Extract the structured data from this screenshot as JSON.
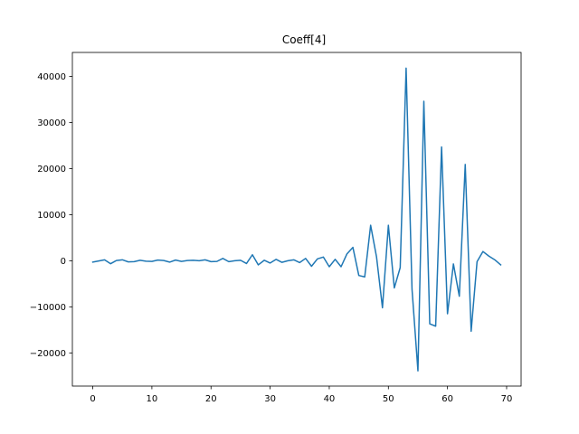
{
  "chart_data": {
    "type": "line",
    "title": "Coeff[4]",
    "xlabel": "",
    "ylabel": "",
    "xlim": [
      -3.45,
      72.45
    ],
    "ylim": [
      -27200,
      45200
    ],
    "grid": false,
    "legend": "none",
    "x_ticks": [
      0,
      10,
      20,
      30,
      40,
      50,
      60,
      70
    ],
    "y_ticks": [
      -20000,
      -10000,
      0,
      10000,
      20000,
      30000,
      40000
    ],
    "series": [
      {
        "color": "#1f77b4",
        "x": [
          0,
          1,
          2,
          3,
          4,
          5,
          6,
          7,
          8,
          9,
          10,
          11,
          12,
          13,
          14,
          15,
          16,
          17,
          18,
          19,
          20,
          21,
          22,
          23,
          24,
          25,
          26,
          27,
          28,
          29,
          30,
          31,
          32,
          33,
          34,
          35,
          36,
          37,
          38,
          39,
          40,
          41,
          42,
          43,
          44,
          45,
          46,
          47,
          48,
          49,
          50,
          51,
          52,
          53,
          54,
          55,
          56,
          57,
          58,
          59,
          60,
          61,
          62,
          63,
          64,
          65,
          66,
          67,
          68,
          69
        ],
        "values": [
          -300,
          -50,
          200,
          -650,
          50,
          200,
          -250,
          -200,
          100,
          -100,
          -150,
          150,
          50,
          -300,
          150,
          -150,
          50,
          100,
          0,
          200,
          -200,
          -150,
          500,
          -200,
          0,
          100,
          -600,
          1300,
          -900,
          100,
          -500,
          300,
          -350,
          0,
          200,
          -400,
          500,
          -1200,
          400,
          800,
          -1300,
          300,
          -1300,
          1500,
          2900,
          -3200,
          -3500,
          7700,
          800,
          -10200,
          7700,
          -5900,
          -1500,
          41800,
          -6200,
          -23900,
          34600,
          -13700,
          -14200,
          24700,
          -11500,
          -700,
          -7700,
          20900,
          -15300,
          -200,
          2000,
          1000,
          200,
          -900
        ]
      }
    ]
  }
}
